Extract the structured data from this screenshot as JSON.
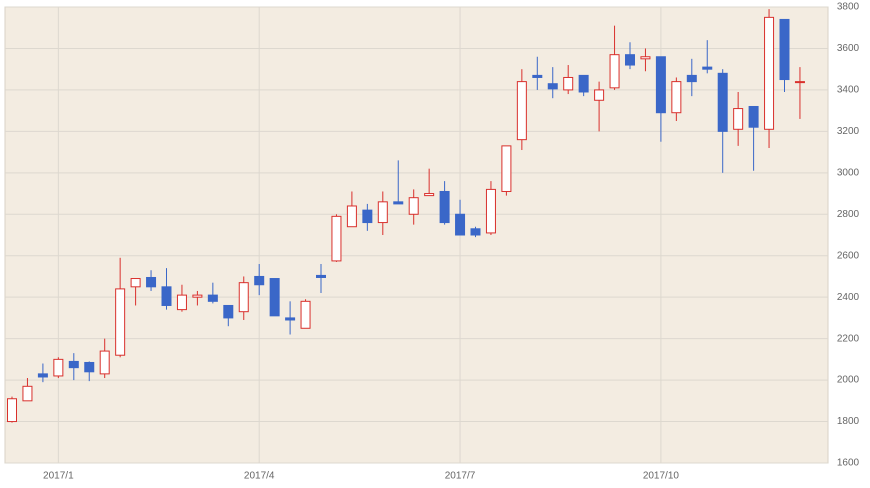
{
  "chart_data": {
    "type": "candlestick",
    "categories": [
      null,
      null,
      null,
      "2017/1",
      null,
      null,
      null,
      null,
      null,
      null,
      null,
      null,
      null,
      null,
      null,
      null,
      "2017/4",
      null,
      null,
      null,
      null,
      null,
      null,
      null,
      null,
      null,
      null,
      null,
      null,
      "2017/7",
      null,
      null,
      null,
      null,
      null,
      null,
      null,
      null,
      null,
      null,
      null,
      null,
      "2017/10",
      null,
      null,
      null,
      null,
      null,
      null,
      null,
      null,
      null
    ],
    "open": [
      1800,
      1900,
      2030,
      2020,
      2090,
      2085,
      2030,
      2120,
      2450,
      2495,
      2450,
      2340,
      2400,
      2410,
      2360,
      2330,
      2500,
      2490,
      2300,
      2250,
      2505,
      2575,
      2740,
      2820,
      2760,
      2860,
      2800,
      2890,
      2910,
      2800,
      2730,
      2710,
      2910,
      3160,
      3470,
      3430,
      3400,
      3470,
      3350,
      3410,
      3570,
      3550,
      3560,
      3290,
      3470,
      3510,
      3480,
      3210,
      3320,
      3210,
      3740,
      3440
    ],
    "high": [
      1920,
      2010,
      2080,
      2110,
      2130,
      2090,
      2200,
      2590,
      2490,
      2530,
      2540,
      2460,
      2430,
      2470,
      2360,
      2500,
      2560,
      2490,
      2380,
      2390,
      2560,
      2800,
      2910,
      2850,
      2910,
      3060,
      2920,
      3020,
      2960,
      2870,
      2740,
      2960,
      3130,
      3500,
      3560,
      3510,
      3520,
      3470,
      3440,
      3710,
      3630,
      3600,
      3560,
      3460,
      3550,
      3640,
      3500,
      3390,
      3320,
      3790,
      3740,
      3510
    ],
    "low": [
      1795,
      1900,
      1990,
      2010,
      2000,
      1995,
      2010,
      2110,
      2360,
      2430,
      2340,
      2330,
      2360,
      2370,
      2260,
      2290,
      2410,
      2310,
      2220,
      2250,
      2420,
      2570,
      2740,
      2720,
      2700,
      2850,
      2750,
      2890,
      2750,
      2700,
      2690,
      2700,
      2890,
      3110,
      3400,
      3360,
      3380,
      3370,
      3200,
      3400,
      3500,
      3490,
      3150,
      3250,
      3370,
      3480,
      3000,
      3130,
      3010,
      3120,
      3390,
      3260
    ],
    "close": [
      1910,
      1970,
      2015,
      2100,
      2060,
      2040,
      2140,
      2440,
      2490,
      2450,
      2360,
      2410,
      2410,
      2380,
      2300,
      2470,
      2460,
      2310,
      2290,
      2380,
      2495,
      2790,
      2840,
      2760,
      2860,
      2850,
      2880,
      2900,
      2760,
      2700,
      2700,
      2920,
      3130,
      3440,
      3460,
      3405,
      3460,
      3390,
      3400,
      3570,
      3520,
      3560,
      3290,
      3440,
      3440,
      3500,
      3200,
      3310,
      3220,
      3750,
      3450,
      3440
    ],
    "up_color": "#d9302c",
    "down_color": "#3a67c8",
    "ylim": [
      1600,
      3800
    ],
    "yticks": [
      1600,
      1800,
      2000,
      2200,
      2400,
      2600,
      2800,
      3000,
      3200,
      3400,
      3600,
      3800
    ],
    "grid": true
  }
}
